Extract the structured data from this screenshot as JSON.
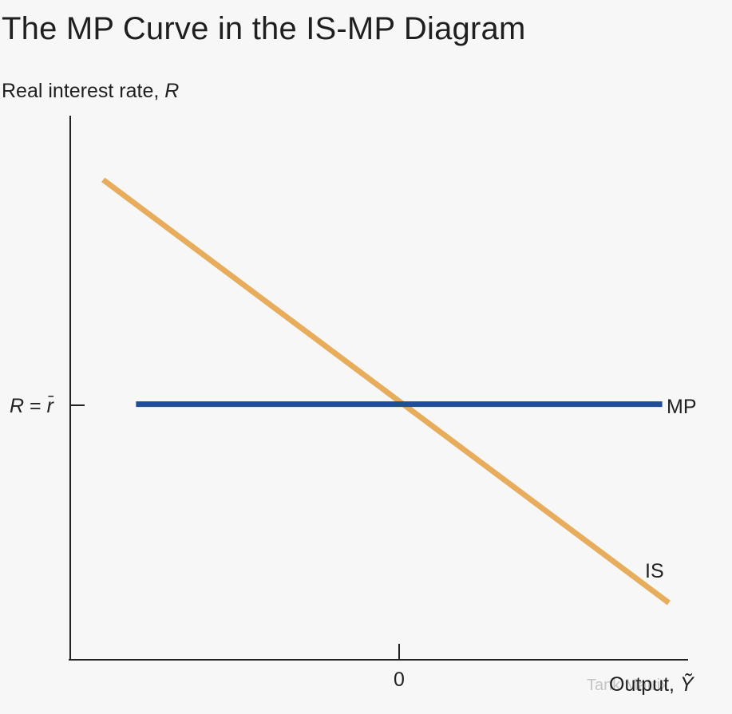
{
  "chart_data": {
    "type": "line",
    "title": "The MP Curve in the IS-MP Diagram",
    "ylabel": {
      "text": "Real interest rate, ",
      "symbol": "R"
    },
    "xlabel": {
      "text": "Output, ",
      "symbol": "Ỹ"
    },
    "x_tick_label": "0",
    "y_tick_label": {
      "left": "R",
      "eq": " = ",
      "right": "r̄"
    },
    "series": [
      {
        "name": "MP",
        "color": "#1f4e96",
        "x": [
          -8,
          8
        ],
        "y": [
          0,
          0
        ]
      },
      {
        "name": "IS",
        "color": "#e8ad5c",
        "x": [
          -9,
          8.2
        ],
        "y": [
          7,
          -6.2
        ]
      }
    ],
    "xlim": [
      -10,
      10
    ],
    "ylim": [
      -8,
      9
    ],
    "grid": false
  },
  "watermark": "Tank Matrix"
}
